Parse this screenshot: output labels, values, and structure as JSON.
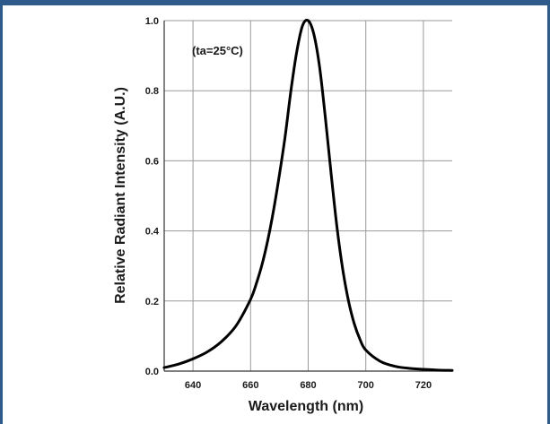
{
  "frame": {
    "border_color": "#2e5b8c",
    "background": "#ffffff"
  },
  "chart_data": {
    "type": "line",
    "xlabel": "Wavelength (nm)",
    "ylabel": "Relative Radiant Intensity (A.U.)",
    "annotation": "(ta=25°C)",
    "xlim": [
      630,
      730
    ],
    "ylim": [
      0,
      1.0
    ],
    "x_ticks": [
      640,
      660,
      680,
      700,
      720
    ],
    "x_tick_labels": [
      "640",
      "660",
      "680",
      "700",
      "720"
    ],
    "y_ticks": [
      0.0,
      0.2,
      0.4,
      0.6,
      0.8,
      1.0
    ],
    "y_tick_labels": [
      "0.0",
      "0.2",
      "0.4",
      "0.6",
      "0.8",
      "1.0"
    ],
    "grid": true,
    "line_color": "#000000",
    "series": [
      {
        "x": [
          630,
          635,
          640,
          645,
          650,
          655,
          660,
          662,
          664,
          666,
          668,
          670,
          672,
          674,
          676,
          678,
          680,
          682,
          684,
          686,
          688,
          690,
          692,
          694,
          696,
          698,
          700,
          705,
          710,
          715,
          720,
          725,
          730
        ],
        "y": [
          0.01,
          0.02,
          0.035,
          0.055,
          0.085,
          0.13,
          0.205,
          0.25,
          0.305,
          0.375,
          0.46,
          0.56,
          0.67,
          0.8,
          0.91,
          0.985,
          1.0,
          0.96,
          0.865,
          0.72,
          0.56,
          0.41,
          0.29,
          0.2,
          0.135,
          0.09,
          0.06,
          0.028,
          0.014,
          0.008,
          0.005,
          0.003,
          0.002
        ]
      }
    ]
  }
}
